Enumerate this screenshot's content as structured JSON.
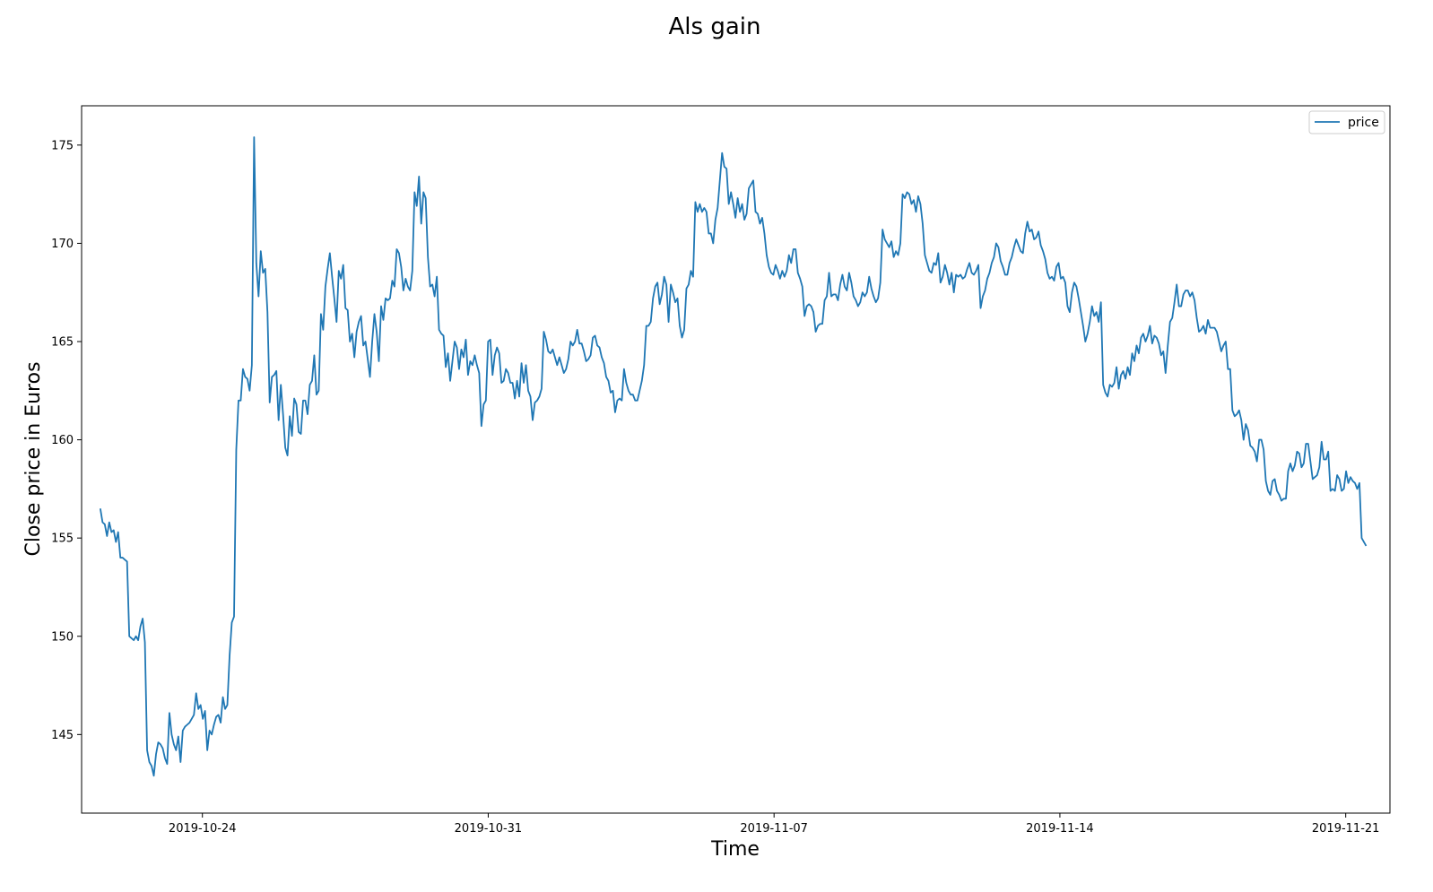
{
  "chart_data": {
    "type": "line",
    "title": "Als gain",
    "xlabel": "Time",
    "ylabel": "Close price in Euros",
    "x_range": [
      "2019-10-21T12:00",
      "2019-11-21T12:00"
    ],
    "xlim": [
      "2019-10-21T01:00",
      "2019-11-22T02:00"
    ],
    "ylim": [
      141.0,
      177.0
    ],
    "x_ticks": [
      "2019-10-24",
      "2019-10-31",
      "2019-11-07",
      "2019-11-14",
      "2019-11-21"
    ],
    "y_ticks": [
      145,
      150,
      155,
      160,
      165,
      170,
      175
    ],
    "grid": false,
    "legend": "top-right",
    "color": "#1f77b4",
    "series": [
      {
        "name": "price",
        "values": [
          156.5,
          155.8,
          155.7,
          155.1,
          155.8,
          155.3,
          155.4,
          154.8,
          155.3,
          154.0,
          154.0,
          153.9,
          153.8,
          150.0,
          149.9,
          149.8,
          150.0,
          149.8,
          150.5,
          150.9,
          149.7,
          144.2,
          143.6,
          143.4,
          142.9,
          144.0,
          144.6,
          144.5,
          144.3,
          143.8,
          143.5,
          146.1,
          145.0,
          144.5,
          144.2,
          144.9,
          143.6,
          145.2,
          145.4,
          145.5,
          145.6,
          145.8,
          146.0,
          147.1,
          146.3,
          146.5,
          145.8,
          146.2,
          144.2,
          145.2,
          145.0,
          145.5,
          145.9,
          146.0,
          145.6,
          146.9,
          146.3,
          146.5,
          149.0,
          150.7,
          151.0,
          159.5,
          162.0,
          162.0,
          163.6,
          163.2,
          163.1,
          162.5,
          163.8,
          175.4,
          169.0,
          167.3,
          169.6,
          168.5,
          168.7,
          166.5,
          161.9,
          163.2,
          163.3,
          163.5,
          161.0,
          162.8,
          161.3,
          159.6,
          159.2,
          161.2,
          160.2,
          162.1,
          161.8,
          160.4,
          160.3,
          162.0,
          162.0,
          161.3,
          162.8,
          163.0,
          164.3,
          162.3,
          162.5,
          166.4,
          165.6,
          167.8,
          168.7,
          169.5,
          168.3,
          167.2,
          166.0,
          168.6,
          168.2,
          168.9,
          166.7,
          166.6,
          165.0,
          165.4,
          164.2,
          165.5,
          166.0,
          166.3,
          164.8,
          165.0,
          164.1,
          163.2,
          165.0,
          166.4,
          165.5,
          164.0,
          166.8,
          166.1,
          167.2,
          167.1,
          167.2,
          168.1,
          167.8,
          169.7,
          169.5,
          168.8,
          167.6,
          168.2,
          167.8,
          167.6,
          168.6,
          172.6,
          171.9,
          173.4,
          171.0,
          172.6,
          172.3,
          169.3,
          167.8,
          167.9,
          167.3,
          168.3,
          165.6,
          165.4,
          165.3,
          163.7,
          164.4,
          163.0,
          164.0,
          165.0,
          164.7,
          163.6,
          164.6,
          164.2,
          165.1,
          163.3,
          164.0,
          163.8,
          164.3,
          163.8,
          163.4,
          160.7,
          161.8,
          162.0,
          165.0,
          165.1,
          163.3,
          164.3,
          164.7,
          164.4,
          162.9,
          163.0,
          163.6,
          163.4,
          162.9,
          162.9,
          162.1,
          163.0,
          162.2,
          163.9,
          162.9,
          163.8,
          162.5,
          162.2,
          161.0,
          161.9,
          162.0,
          162.2,
          162.6,
          165.5,
          165.1,
          164.5,
          164.4,
          164.6,
          164.2,
          163.8,
          164.2,
          163.8,
          163.4,
          163.6,
          164.1,
          165.0,
          164.8,
          165.0,
          165.6,
          164.9,
          164.9,
          164.5,
          164.0,
          164.1,
          164.3,
          165.2,
          165.3,
          164.8,
          164.7,
          164.2,
          163.9,
          163.2,
          163.0,
          162.4,
          162.5,
          161.4,
          162.0,
          162.1,
          162.0,
          163.6,
          162.9,
          162.5,
          162.3,
          162.3,
          162.0,
          162.0,
          162.5,
          163.0,
          163.8,
          165.8,
          165.8,
          166.0,
          167.2,
          167.8,
          168.0,
          166.9,
          167.4,
          168.3,
          167.9,
          166.0,
          167.9,
          167.5,
          167.0,
          167.2,
          165.8,
          165.2,
          165.6,
          167.7,
          167.9,
          168.6,
          168.3,
          172.1,
          171.6,
          172.0,
          171.6,
          171.8,
          171.6,
          170.5,
          170.5,
          170.0,
          171.2,
          171.8,
          173.2,
          174.6,
          173.9,
          173.8,
          172.0,
          172.6,
          172.0,
          171.3,
          172.3,
          171.6,
          172.0,
          171.2,
          171.5,
          172.8,
          173.0,
          173.2,
          171.6,
          171.5,
          171.0,
          171.3,
          170.5,
          169.4,
          168.8,
          168.5,
          168.4,
          168.9,
          168.6,
          168.2,
          168.6,
          168.3,
          168.6,
          169.4,
          169.0,
          169.7,
          169.7,
          168.5,
          168.2,
          167.8,
          166.3,
          166.8,
          166.9,
          166.8,
          166.5,
          165.5,
          165.8,
          165.9,
          165.9,
          167.1,
          167.3,
          168.5,
          167.3,
          167.4,
          167.4,
          167.1,
          167.9,
          168.4,
          167.8,
          167.6,
          168.5,
          168.0,
          167.3,
          167.1,
          166.8,
          167.0,
          167.5,
          167.3,
          167.5,
          168.3,
          167.7,
          167.3,
          167.0,
          167.2,
          168.0,
          170.7,
          170.2,
          170.0,
          169.8,
          170.1,
          169.3,
          169.6,
          169.4,
          170.0,
          172.5,
          172.3,
          172.6,
          172.5,
          172.0,
          172.2,
          171.6,
          172.4,
          172.0,
          171.0,
          169.4,
          169.0,
          168.6,
          168.5,
          169.0,
          168.9,
          169.5,
          168.0,
          168.3,
          168.9,
          168.5,
          167.9,
          168.5,
          167.5,
          168.4,
          168.3,
          168.4,
          168.2,
          168.3,
          168.7,
          169.0,
          168.5,
          168.4,
          168.6,
          168.9,
          166.7,
          167.3,
          167.6,
          168.2,
          168.5,
          169.0,
          169.3,
          170.0,
          169.8,
          169.1,
          168.8,
          168.4,
          168.4,
          169.0,
          169.3,
          169.8,
          170.2,
          169.9,
          169.6,
          169.5,
          170.5,
          171.1,
          170.6,
          170.7,
          170.2,
          170.3,
          170.6,
          169.9,
          169.6,
          169.2,
          168.5,
          168.2,
          168.3,
          168.1,
          168.8,
          169.0,
          168.2,
          168.3,
          168.0,
          166.8,
          166.5,
          167.5,
          168.0,
          167.8,
          167.2,
          166.5,
          165.8,
          165.0,
          165.4,
          166.0,
          166.8,
          166.3,
          166.5,
          166.0,
          167.0,
          162.8,
          162.4,
          162.2,
          162.8,
          162.7,
          162.9,
          163.7,
          162.6,
          163.3,
          163.5,
          163.1,
          163.7,
          163.3,
          164.4,
          164.0,
          164.8,
          164.4,
          165.2,
          165.4,
          165.0,
          165.3,
          165.8,
          164.9,
          165.3,
          165.2,
          164.9,
          164.3,
          164.5,
          163.4,
          164.8,
          166.0,
          166.2,
          167.0,
          167.9,
          166.8,
          166.8,
          167.4,
          167.6,
          167.6,
          167.3,
          167.5,
          167.1,
          166.2,
          165.5,
          165.6,
          165.8,
          165.4,
          166.1,
          165.7,
          165.7,
          165.7,
          165.5,
          165.0,
          164.5,
          164.8,
          165.0,
          163.6,
          163.6,
          161.5,
          161.2,
          161.3,
          161.5,
          161.0,
          160.0,
          160.8,
          160.5,
          159.7,
          159.6,
          159.4,
          158.9,
          160.0,
          160.0,
          159.5,
          157.9,
          157.4,
          157.2,
          157.9,
          158.0,
          157.4,
          157.2,
          156.9,
          157.0,
          157.0,
          158.4,
          158.8,
          158.4,
          158.7,
          159.4,
          159.3,
          158.6,
          158.8,
          159.8,
          159.8,
          158.9,
          158.0,
          158.1,
          158.2,
          158.6,
          159.9,
          159.0,
          159.0,
          159.4,
          157.4,
          157.5,
          157.4,
          158.2,
          158.0,
          157.4,
          157.5,
          158.4,
          157.8,
          158.1,
          157.9,
          157.8,
          157.5,
          157.8,
          155.0,
          154.8,
          154.6
        ]
      }
    ]
  }
}
